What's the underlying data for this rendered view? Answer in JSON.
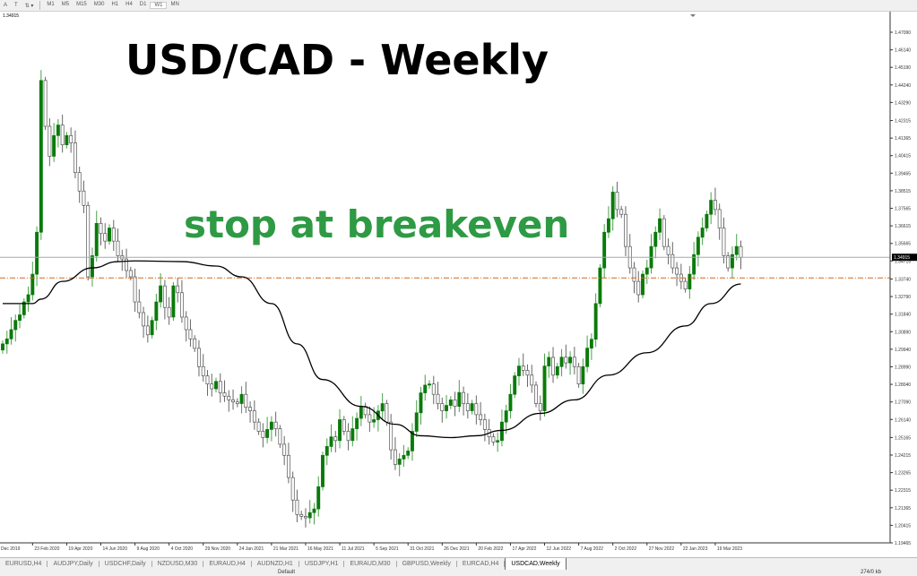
{
  "toolbar": {
    "tools": [
      "A",
      "T",
      "⇅ ▾"
    ],
    "timeframes": [
      "M1",
      "M5",
      "M15",
      "M30",
      "H1",
      "H4",
      "D1",
      "W1",
      "MN"
    ],
    "active": "W1"
  },
  "chart_info": {
    "corner_price": "1.34915"
  },
  "annotations": {
    "title": "USD/CAD - Weekly",
    "note": "stop at breakeven",
    "title_color": "#000000",
    "note_color": "#2e9a44"
  },
  "tabs": [
    "EURUSD,H4",
    "AUDJPY,Daily",
    "USDCHF,Daily",
    "NZDUSD,M30",
    "EURAUD,H4",
    "AUDNZD,H1",
    "USDJPY,H1",
    "EURAUD,M30",
    "GBPUSD,Weekly",
    "EURCAD,H4",
    "USDCAD,Weekly"
  ],
  "active_tab": "USDCAD,Weekly",
  "status": {
    "profile": "Default",
    "traffic": "274/0 kb"
  },
  "chart_data": {
    "type": "candlestick",
    "symbol": "USDCAD",
    "timeframe": "Weekly",
    "colors": {
      "bull": "#0a7a0a",
      "bear": "#ffffff",
      "bear_outline": "#555555",
      "ma": "#000000",
      "breakeven_line": "#d2691e",
      "price_line": "#a0a8b0"
    },
    "ylim": [
      1.19465,
      1.4709
    ],
    "y_ticks": [
      "1.47090",
      "1.46140",
      "1.45190",
      "1.44240",
      "1.43290",
      "1.42315",
      "1.41365",
      "1.40415",
      "1.39465",
      "1.38515",
      "1.37565",
      "1.36615",
      "1.35665",
      "1.34715",
      "1.33740",
      "1.32790",
      "1.31840",
      "1.30890",
      "1.29940",
      "1.28990",
      "1.28040",
      "1.27090",
      "1.26140",
      "1.25165",
      "1.24215",
      "1.23265",
      "1.22315",
      "1.21365",
      "1.20415",
      "1.19465"
    ],
    "x_ticks": [
      "Dec 2019",
      "23 Feb 2020",
      "19 Apr 2020",
      "14 Jun 2020",
      "9 Aug 2020",
      "4 Oct 2020",
      "29 Nov 2020",
      "24 Jan 2021",
      "21 Mar 2021",
      "16 May 2021",
      "11 Jul 2021",
      "5 Sep 2021",
      "31 Oct 2021",
      "26 Dec 2021",
      "20 Feb 2022",
      "17 Apr 2022",
      "12 Jun 2022",
      "7 Aug 2022",
      "2 Oct 2022",
      "27 Nov 2022",
      "22 Jan 2023",
      "19 Mar 2023"
    ],
    "first_open": 1.299,
    "closes": [
      1.3023,
      1.305,
      1.31,
      1.315,
      1.318,
      1.325,
      1.3289,
      1.34,
      1.3627,
      1.4448,
      1.42,
      1.4038,
      1.415,
      1.4207,
      1.41,
      1.415,
      1.411,
      1.395,
      1.385,
      1.3772,
      1.3386,
      1.35,
      1.3675,
      1.362,
      1.3579,
      1.365,
      1.3579,
      1.35,
      1.3482,
      1.342,
      1.3386,
      1.325,
      1.3192,
      1.312,
      1.3072,
      1.315,
      1.325,
      1.3337,
      1.322,
      1.3168,
      1.3337,
      1.33,
      1.3168,
      1.31,
      1.305,
      1.2999,
      1.29,
      1.285,
      1.2806,
      1.278,
      1.282,
      1.2758,
      1.274,
      1.272,
      1.2709,
      1.27,
      1.275,
      1.268,
      1.2661,
      1.26,
      1.255,
      1.2516,
      1.256,
      1.26,
      1.2564,
      1.248,
      1.242,
      1.23,
      1.2178,
      1.21,
      1.209,
      1.2082,
      1.211,
      1.213,
      1.225,
      1.242,
      1.2468,
      1.252,
      1.25,
      1.2613,
      1.255,
      1.25,
      1.2564,
      1.262,
      1.2685,
      1.264,
      1.26,
      1.2613,
      1.266,
      1.27,
      1.26,
      1.245,
      1.2371,
      1.24,
      1.242,
      1.2444,
      1.255,
      1.265,
      1.2758,
      1.28,
      1.2806,
      1.275,
      1.27,
      1.2661,
      1.269,
      1.272,
      1.2685,
      1.276,
      1.27,
      1.2661,
      1.27,
      1.264,
      1.2613,
      1.256,
      1.252,
      1.2492,
      1.25,
      1.26,
      1.2661,
      1.275,
      1.285,
      1.2903,
      1.288,
      1.2854,
      1.28,
      1.27,
      1.2661,
      1.2903,
      1.295,
      1.2854,
      1.29,
      1.2951,
      1.292,
      1.2951,
      1.29,
      1.2806,
      1.29,
      1.3,
      1.3048,
      1.3241,
      1.3434,
      1.3627,
      1.37,
      1.3844,
      1.375,
      1.3724,
      1.355,
      1.3434,
      1.3361,
      1.3289,
      1.34,
      1.3434,
      1.355,
      1.3627,
      1.37,
      1.355,
      1.3506,
      1.3434,
      1.34,
      1.3361,
      1.332,
      1.34,
      1.3506,
      1.36,
      1.365,
      1.3724,
      1.38,
      1.375,
      1.365,
      1.35,
      1.3434,
      1.3506,
      1.355,
      1.3491
    ],
    "moving_average": [
      [
        0,
        1.3241
      ],
      [
        7,
        1.3241
      ],
      [
        9,
        1.3265
      ],
      [
        14,
        1.3361
      ],
      [
        21,
        1.3434
      ],
      [
        27,
        1.3468
      ],
      [
        31,
        1.3472
      ],
      [
        42,
        1.3468
      ],
      [
        50,
        1.3444
      ],
      [
        56,
        1.3386
      ],
      [
        63,
        1.3241
      ],
      [
        69,
        1.3023
      ],
      [
        75,
        1.283
      ],
      [
        84,
        1.2685
      ],
      [
        92,
        1.2588
      ],
      [
        98,
        1.2526
      ],
      [
        105,
        1.2516
      ],
      [
        111,
        1.2526
      ],
      [
        117,
        1.2555
      ],
      [
        126,
        1.2647
      ],
      [
        134,
        1.272
      ],
      [
        142,
        1.2854
      ],
      [
        151,
        1.2975
      ],
      [
        160,
        1.312
      ],
      [
        166,
        1.3241
      ],
      [
        173,
        1.3347
      ]
    ],
    "current_price": 1.34915,
    "current_price_label": "1.34915",
    "breakeven_level": 1.338
  }
}
